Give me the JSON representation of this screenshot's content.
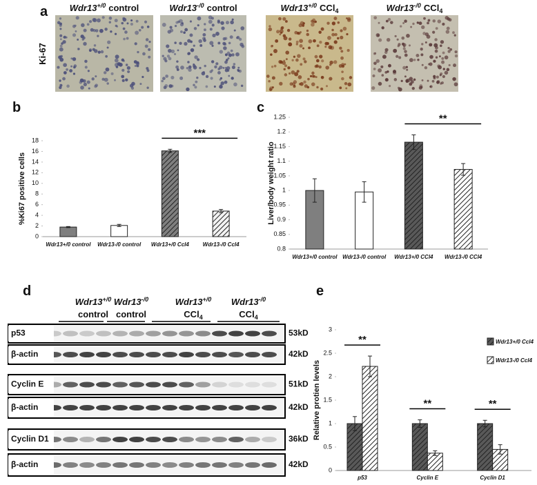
{
  "panel_labels": [
    "a",
    "b",
    "c",
    "d",
    "e"
  ],
  "groups": [
    {
      "gene": "Wdr13",
      "sup": "+/0",
      "condition": "control"
    },
    {
      "gene": "Wdr13",
      "sup": "-/0",
      "condition": "control"
    },
    {
      "gene": "Wdr13",
      "sup": "+/0",
      "condition": "CCl",
      "sub": "4"
    },
    {
      "gene": "Wdr13",
      "sup": "-/0",
      "condition": "CCl",
      "sub": "4"
    }
  ],
  "stain_label": "Ki-67",
  "blot": {
    "rows": [
      {
        "label": "p53",
        "size": "53kD"
      },
      {
        "label": "β-actin",
        "size": "42kD"
      },
      {
        "label": "Cyclin E",
        "size": "51kD"
      },
      {
        "label": "β-actin",
        "size": "42kD"
      },
      {
        "label": "Cyclin D1",
        "size": "36kD"
      },
      {
        "label": "β-actin",
        "size": "42kD"
      }
    ]
  },
  "chart_data": [
    {
      "type": "bar",
      "ylabel": "%Ki67 positive cells",
      "categories": [
        "Wdr13+/0 control",
        "Wdr13-/0 control",
        "Wdr13+/0 Ccl4",
        "Wdr13-/0 Ccl4"
      ],
      "values": [
        1.8,
        2.1,
        16.1,
        4.8
      ],
      "errors": [
        0.1,
        0.2,
        0.3,
        0.3
      ],
      "colors": [
        "#7f7f7f",
        "#ffffff",
        "#7f7f7f",
        "#f2f2f2"
      ],
      "hatch": [
        false,
        false,
        true,
        true
      ],
      "annotations": [
        null,
        null,
        "***",
        null
      ],
      "ylim": [
        0,
        18
      ],
      "yticks": [
        0,
        2,
        4,
        6,
        8,
        10,
        12,
        14,
        16,
        18
      ]
    },
    {
      "type": "bar",
      "ylabel": "Liver/body weight ratio",
      "categories": [
        "Wdr13+/0 control",
        "Wdr13-/0 control",
        "Wdr13+/0 CCl4",
        "Wdr13-/0 CCl4"
      ],
      "values": [
        1.0,
        0.995,
        1.165,
        1.072
      ],
      "errors": [
        0.04,
        0.035,
        0.025,
        0.02
      ],
      "colors": [
        "#7f7f7f",
        "#ffffff",
        "#595959",
        "#ffffff"
      ],
      "hatch": [
        false,
        false,
        true,
        true
      ],
      "annotations": [
        null,
        null,
        "**",
        null
      ],
      "ylim": [
        0.8,
        1.25
      ],
      "yticks": [
        0.8,
        0.85,
        0.9,
        0.95,
        1,
        1.05,
        1.1,
        1.15,
        1.2,
        1.25
      ]
    },
    {
      "type": "grouped-bar",
      "ylabel": "Relative protien levels",
      "categories": [
        "p53",
        "Cyclin E",
        "Cyclin D1"
      ],
      "series": [
        {
          "name": "Wdr13+/0 Ccl4",
          "color": "#595959",
          "values": [
            1,
            1,
            1
          ],
          "errors": [
            0.15,
            0.08,
            0.07
          ]
        },
        {
          "name": "Wdr13-/0 Ccl4",
          "color": "#ffffff",
          "values": [
            2.22,
            0.37,
            0.45
          ],
          "errors": [
            0.22,
            0.05,
            0.1
          ]
        }
      ],
      "annotations": [
        "**",
        "**",
        "**"
      ],
      "ylim": [
        0,
        3
      ],
      "yticks": [
        0,
        0.5,
        1,
        1.5,
        2,
        2.5,
        3
      ]
    }
  ]
}
